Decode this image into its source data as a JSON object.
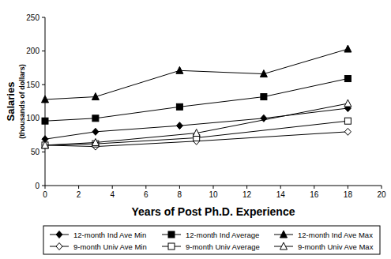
{
  "chart_data": {
    "type": "line",
    "x_label": "Years of Post Ph.D. Experience",
    "y_label": "Salaries",
    "y_sublabel": "(thousands of dollars)",
    "xlim": [
      0,
      20
    ],
    "xticks": [
      0,
      2,
      4,
      6,
      8,
      10,
      12,
      14,
      16,
      18,
      20
    ],
    "ylim": [
      0,
      250
    ],
    "yticks": [
      0,
      50,
      100,
      150,
      200,
      250
    ],
    "grid": false,
    "legend": "bottom",
    "series": [
      {
        "name": "12-month Ind Ave Min",
        "color": "#000000",
        "marker": "diamond",
        "x": [
          0,
          3,
          8,
          13,
          18
        ],
        "values": [
          69,
          80,
          89,
          100,
          115
        ]
      },
      {
        "name": "12-month Ind Average",
        "color": "#000000",
        "marker": "square",
        "x": [
          0,
          3,
          8,
          13,
          18
        ],
        "values": [
          96,
          100,
          117,
          132,
          159
        ]
      },
      {
        "name": "12-month Ind Ave Max",
        "color": "#000000",
        "marker": "triangle",
        "x": [
          0,
          3,
          8,
          13,
          18
        ],
        "values": [
          128,
          132,
          171,
          166,
          203
        ]
      },
      {
        "name": "9-month Univ Ave Min",
        "color": "#000000",
        "marker": "open-diamond",
        "x": [
          0,
          3,
          9,
          18
        ],
        "values": [
          60,
          58,
          66,
          80
        ]
      },
      {
        "name": "9-month Univ Average",
        "color": "#000000",
        "marker": "open-square",
        "x": [
          0,
          3,
          9,
          18
        ],
        "values": [
          60,
          62,
          71,
          96
        ]
      },
      {
        "name": "9-month Univ Ave Max",
        "color": "#000000",
        "marker": "open-triangle",
        "x": [
          0,
          3,
          9,
          18
        ],
        "values": [
          60,
          64,
          78,
          122
        ]
      }
    ]
  }
}
